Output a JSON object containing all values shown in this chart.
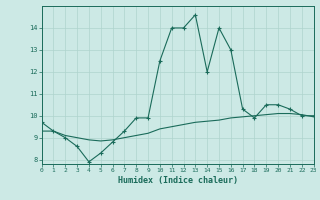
{
  "xlabel": "Humidex (Indice chaleur)",
  "bg_color": "#cce9e5",
  "line_color": "#1a6b5a",
  "grid_color": "#afd4ce",
  "x_values": [
    0,
    1,
    2,
    3,
    4,
    5,
    6,
    7,
    8,
    9,
    10,
    11,
    12,
    13,
    14,
    15,
    16,
    17,
    18,
    19,
    20,
    21,
    22,
    23
  ],
  "line1_y": [
    9.7,
    9.3,
    9.0,
    8.6,
    7.9,
    8.3,
    8.8,
    9.3,
    9.9,
    9.9,
    12.5,
    14.0,
    14.0,
    14.6,
    12.0,
    14.0,
    13.0,
    10.3,
    9.9,
    10.5,
    10.5,
    10.3,
    10.0,
    10.0
  ],
  "line2_y": [
    9.3,
    9.3,
    9.1,
    9.0,
    8.9,
    8.85,
    8.9,
    9.0,
    9.1,
    9.2,
    9.4,
    9.5,
    9.6,
    9.7,
    9.75,
    9.8,
    9.9,
    9.95,
    10.0,
    10.05,
    10.1,
    10.1,
    10.05,
    9.95
  ],
  "xlim": [
    0,
    23
  ],
  "ylim": [
    7.8,
    15.0
  ],
  "yticks": [
    8,
    9,
    10,
    11,
    12,
    13,
    14
  ],
  "xticks": [
    0,
    1,
    2,
    3,
    4,
    5,
    6,
    7,
    8,
    9,
    10,
    11,
    12,
    13,
    14,
    15,
    16,
    17,
    18,
    19,
    20,
    21,
    22,
    23
  ]
}
